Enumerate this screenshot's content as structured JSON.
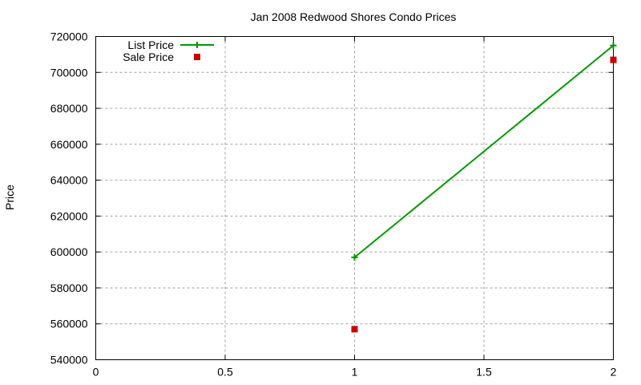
{
  "chart_data": {
    "type": "line",
    "title": "Jan 2008 Redwood Shores Condo Prices",
    "xlabel": "",
    "ylabel": "Price",
    "xlim": [
      0,
      2
    ],
    "ylim": [
      540000,
      720000
    ],
    "x_ticks": [
      "0",
      "0.5",
      "1",
      "1.5",
      "2"
    ],
    "y_ticks": [
      "540000",
      "560000",
      "580000",
      "600000",
      "620000",
      "640000",
      "660000",
      "680000",
      "700000",
      "720000"
    ],
    "grid": true,
    "legend_position": "top-left",
    "series": [
      {
        "name": "List Price",
        "style": "lines+points",
        "marker": "plus",
        "color": "#009900",
        "x": [
          1,
          2
        ],
        "values": [
          597000,
          715000
        ]
      },
      {
        "name": "Sale Price",
        "style": "points",
        "marker": "square",
        "color": "#cc0000",
        "x": [
          1,
          2
        ],
        "values": [
          557000,
          707000
        ]
      }
    ]
  }
}
